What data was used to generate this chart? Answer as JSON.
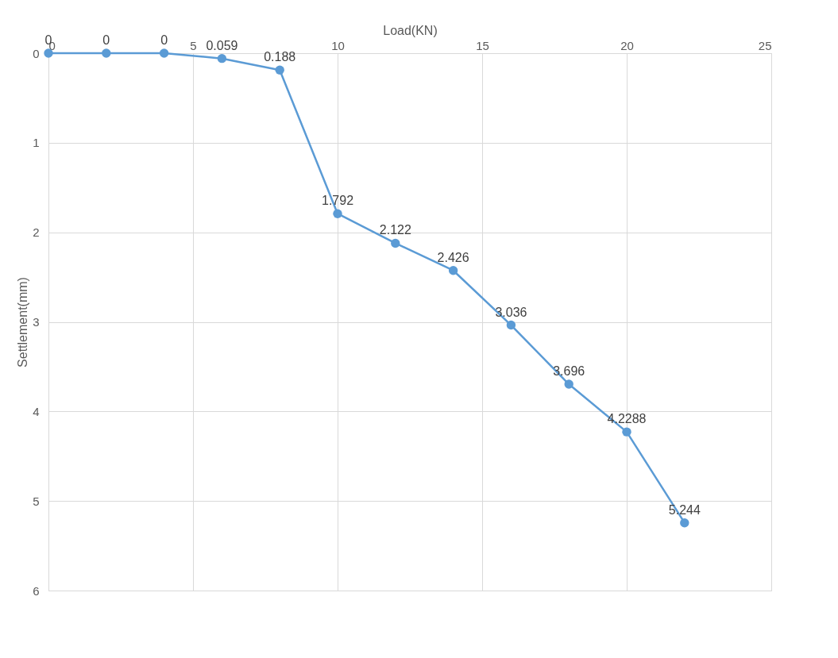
{
  "chart_data": {
    "type": "line",
    "xlabel": "Load(KN)",
    "ylabel": "Settlement(mm)",
    "x": [
      0,
      2,
      4,
      6,
      8,
      10,
      12,
      14,
      16,
      18,
      20,
      22
    ],
    "series": [
      {
        "color": "#5b9bd5",
        "values": [
          0,
          0,
          0,
          0.059,
          0.188,
          1.792,
          2.122,
          2.426,
          3.036,
          3.696,
          4.2288,
          5.244
        ]
      }
    ],
    "xlim": [
      0,
      25
    ],
    "xticks": [
      0,
      5,
      10,
      15,
      20,
      25
    ],
    "ylim": [
      6,
      0
    ],
    "yticks": [
      0,
      1,
      2,
      3,
      4,
      5,
      6
    ],
    "grid": true,
    "data_labels": true,
    "marker": "circle",
    "line_style": "solid"
  }
}
